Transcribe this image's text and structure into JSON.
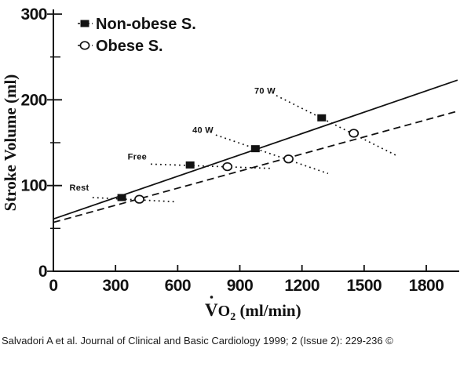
{
  "colors": {
    "ink": "#121212",
    "background": "#ffffff"
  },
  "chart_data": {
    "type": "scatter",
    "title": "",
    "xlabel": "V̇O₂ (ml/min)",
    "xlabel_parts": {
      "v": "V",
      "o": "O",
      "sub": "2",
      "rest": " (ml/min)"
    },
    "ylabel": "Stroke Volume (ml)",
    "xlim": [
      0,
      1959
    ],
    "ylim": [
      0,
      300
    ],
    "x_ticks": [
      0,
      300,
      600,
      900,
      1200,
      1500,
      1800
    ],
    "y_ticks_major": [
      0,
      100,
      200,
      300
    ],
    "y_ticks_minor": [
      50,
      150,
      250
    ],
    "grid": false,
    "legend_position": "top-left",
    "legend": [
      {
        "label": "Non-obese S.",
        "marker": "filled-square"
      },
      {
        "label": "Obese S.",
        "marker": "open-circle"
      }
    ],
    "series": [
      {
        "name": "Non-obese S.",
        "marker": "filled-square",
        "line": "solid",
        "points": [
          {
            "condition": "Rest",
            "x": 330,
            "y": 86
          },
          {
            "condition": "Free",
            "x": 660,
            "y": 124
          },
          {
            "condition": "40 W",
            "x": 975,
            "y": 143
          },
          {
            "condition": "70 W",
            "x": 1295,
            "y": 179
          }
        ],
        "trend": {
          "x1": 0,
          "y1": 61,
          "x2": 1951,
          "y2": 223
        }
      },
      {
        "name": "Obese S.",
        "marker": "open-circle",
        "line": "dashed",
        "points": [
          {
            "condition": "Rest",
            "x": 415,
            "y": 84
          },
          {
            "condition": "Free",
            "x": 840,
            "y": 122
          },
          {
            "condition": "40 W",
            "x": 1135,
            "y": 131
          },
          {
            "condition": "70 W",
            "x": 1450,
            "y": 161
          }
        ],
        "trend": {
          "x1": 0,
          "y1": 57,
          "x2": 1940,
          "y2": 186
        }
      }
    ],
    "annotations": [
      {
        "label": "Rest",
        "x": 125,
        "y": 98,
        "line": {
          "x1": 189,
          "y1": 86,
          "x2": 595,
          "y2": 81
        }
      },
      {
        "label": "Free",
        "x": 405,
        "y": 134,
        "line": {
          "x1": 470,
          "y1": 125,
          "x2": 1050,
          "y2": 120
        }
      },
      {
        "label": "40 W",
        "x": 722,
        "y": 165,
        "line": {
          "x1": 784,
          "y1": 159,
          "x2": 1326,
          "y2": 114
        }
      },
      {
        "label": "70 W",
        "x": 1021,
        "y": 211,
        "line": {
          "x1": 1076,
          "y1": 205,
          "x2": 1656,
          "y2": 135
        }
      }
    ]
  },
  "citation": "Salvadori A et al. Journal of Clinical and Basic Cardiology 1999; 2 (Issue 2): 229-236 ©"
}
